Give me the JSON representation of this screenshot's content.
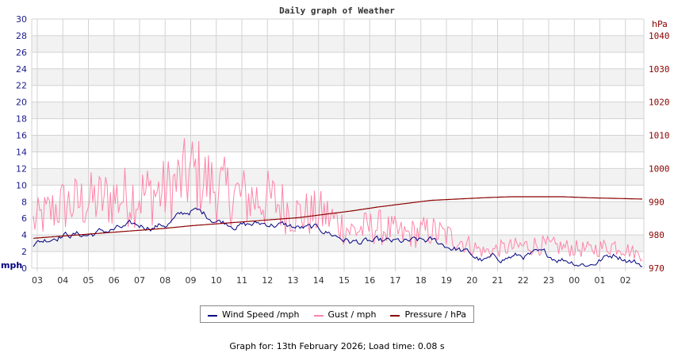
{
  "page": {
    "title": "Daily graph of Weather",
    "footer_prefix": "Graph for: ",
    "footer_date": "13th February 2026",
    "footer_sep": "; Load time: ",
    "footer_load": "0.08 s",
    "footer": "Graph for: 13th February 2026; Load time: 0.08 s"
  },
  "legend": {
    "items": [
      {
        "label": "Wind Speed /mph",
        "color": "#000080"
      },
      {
        "label": "Gust / mph",
        "color": "#ff85aa"
      },
      {
        "label": "Pressure / hPa",
        "color": "#8b0000"
      }
    ]
  },
  "colors": {
    "wind": "#000080",
    "gust": "#ff85aa",
    "pressure": "#8b0000",
    "grid": "#d3d3d3",
    "band": "#f2f2f2",
    "left_axis": "#1a1a8c",
    "right_axis": "#8b0000"
  },
  "chart_data": {
    "type": "line",
    "title": "Daily graph of Weather",
    "xlabel": "",
    "ylabel": "mph",
    "y2label": "hPa",
    "ylim": [
      0,
      30
    ],
    "y2lim": [
      970,
      1040
    ],
    "grid": true,
    "legend_position": "bottom",
    "yticks": [
      0,
      2,
      4,
      6,
      8,
      10,
      12,
      14,
      16,
      18,
      20,
      22,
      24,
      26,
      28,
      30
    ],
    "y2ticks": [
      970,
      980,
      990,
      1000,
      1010,
      1020,
      1030,
      1040
    ],
    "categories": [
      "03",
      "04",
      "05",
      "06",
      "07",
      "08",
      "09",
      "10",
      "11",
      "12",
      "13",
      "14",
      "15",
      "16",
      "17",
      "18",
      "19",
      "20",
      "21",
      "22",
      "23",
      "00",
      "01",
      "02"
    ],
    "series": [
      {
        "name": "Wind Speed /mph",
        "axis": "left",
        "values": [
          2.8,
          4.2,
          4.0,
          4.6,
          5.0,
          5.3,
          7.0,
          5.8,
          5.2,
          5.4,
          4.8,
          4.5,
          3.2,
          3.0,
          3.0,
          3.2,
          2.4,
          0.8,
          1.4,
          1.5,
          1.2,
          0.5,
          1.8,
          0.4
        ]
      },
      {
        "name": "Gust / mph",
        "axis": "left",
        "values": [
          5.5,
          7.5,
          8.0,
          8.5,
          8.8,
          9.2,
          11.5,
          9.5,
          8.5,
          8.2,
          6.5,
          6.5,
          4.5,
          5.0,
          4.0,
          4.5,
          3.5,
          2.0,
          2.5,
          2.8,
          2.5,
          2.2,
          2.8,
          1.5
        ]
      },
      {
        "name": "Pressure / hPa",
        "axis": "right",
        "values": [
          979.0,
          979.6,
          980.2,
          980.8,
          981.4,
          982.0,
          982.8,
          983.4,
          984.0,
          984.6,
          985.2,
          986.2,
          987.2,
          988.4,
          989.4,
          990.4,
          990.8,
          991.2,
          991.5,
          991.5,
          991.5,
          991.2,
          991.0,
          990.8
        ]
      }
    ]
  }
}
